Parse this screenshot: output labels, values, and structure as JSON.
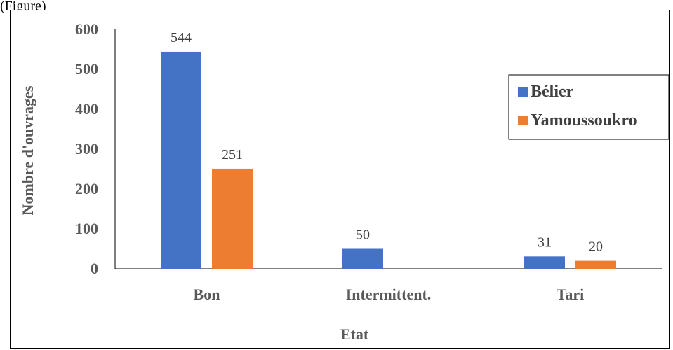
{
  "page": {
    "top_fragment": "(Figure)"
  },
  "chart_data": {
    "type": "bar",
    "categories": [
      "Bon",
      "Intermittent.",
      "Tari"
    ],
    "series": [
      {
        "name": "Bélier",
        "values": [
          544,
          50,
          31
        ],
        "color": "#4472C4"
      },
      {
        "name": "Yamoussoukro",
        "values": [
          251,
          null,
          20
        ],
        "color": "#ED7D31"
      }
    ],
    "xlabel": "Etat",
    "ylabel": "Nombre d'ouvrages",
    "ylim": [
      0,
      600
    ],
    "yticks": [
      0,
      100,
      200,
      300,
      400,
      500,
      600
    ],
    "grid": false,
    "legend": "right",
    "data_labels": true
  }
}
